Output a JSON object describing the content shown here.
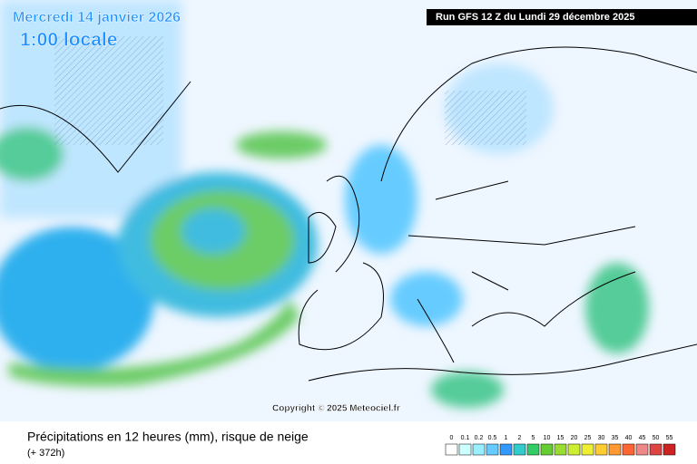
{
  "header": {
    "date": "Mercredi 14 janvier 2026",
    "time": "1:00 locale",
    "run": "Run GFS 12 Z du Lundi 29 décembre 2025"
  },
  "copyright": "Copyright © 2025 Meteociel.fr",
  "footer": {
    "title": "Précipitations en 12 heures (mm), risque de neige",
    "lead": "(+ 372h)"
  },
  "legend": {
    "values": [
      0,
      0.1,
      0.2,
      0.5,
      1,
      2,
      5,
      10,
      15,
      20,
      25,
      30,
      35,
      40,
      45,
      50,
      55
    ],
    "colors": [
      "#ffffff",
      "#ccffff",
      "#99eeff",
      "#66ccff",
      "#3399ff",
      "#33cccc",
      "#33cc66",
      "#66cc33",
      "#99dd33",
      "#ccee33",
      "#eeee33",
      "#ffcc33",
      "#ff9933",
      "#ff6633",
      "#ee8888",
      "#dd4444",
      "#cc2222"
    ]
  }
}
